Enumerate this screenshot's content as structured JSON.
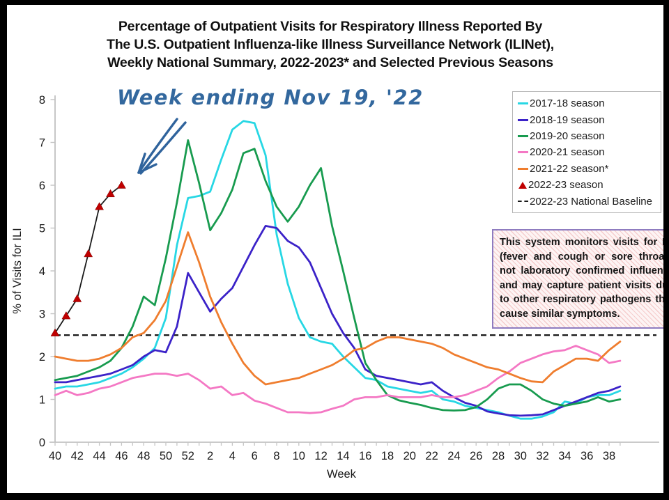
{
  "title": "Percentage of Outpatient Visits for Respiratory Illness Reported By\nThe U.S. Outpatient Influenza-like Illness Surveillance Network (ILINet),\nWeekly National Summary, 2022-2023* and Selected Previous Seasons",
  "annotation": {
    "text": "Week ending Nov 19, '22",
    "color": "#33689e"
  },
  "info_box": {
    "text": "This system monitors visits for ILI (fever and cough or sore throat), not laboratory confirmed influenza and may capture patient visits due to other respiratory pathogens that cause similar symptoms."
  },
  "legend": {
    "items": [
      {
        "label": "2017-18 season",
        "swatch": "line",
        "color": "#27d7e4"
      },
      {
        "label": "2018-19 season",
        "swatch": "line",
        "color": "#3b22c8"
      },
      {
        "label": "2019-20 season",
        "swatch": "line",
        "color": "#189b4f"
      },
      {
        "label": "2020-21 season",
        "swatch": "line",
        "color": "#f478c4"
      },
      {
        "label": "2021-22 season*",
        "swatch": "line",
        "color": "#ef7d2e"
      },
      {
        "label": "2022-23 season",
        "swatch": "triangle",
        "color": "#c00000"
      },
      {
        "label": "2022-23 National Baseline",
        "swatch": "dashed",
        "color": "#1a1a1a"
      }
    ]
  },
  "chart_data": {
    "type": "line",
    "title": "Percentage of Outpatient Visits for Respiratory Illness Reported By The U.S. Outpatient Influenza-like Illness Surveillance Network (ILINet), Weekly National Summary, 2022-2023* and Selected Previous Seasons",
    "xlabel": "Week",
    "ylabel": "% of Visits for ILI",
    "ylim": [
      0,
      8
    ],
    "yticks": [
      0,
      1,
      2,
      3,
      4,
      5,
      6,
      7,
      8
    ],
    "grid": false,
    "legend_position": "upper right",
    "weeks": [
      40,
      41,
      42,
      43,
      44,
      45,
      46,
      47,
      48,
      49,
      50,
      51,
      52,
      1,
      2,
      3,
      4,
      5,
      6,
      7,
      8,
      9,
      10,
      11,
      12,
      13,
      14,
      15,
      16,
      17,
      18,
      19,
      20,
      21,
      22,
      23,
      24,
      25,
      26,
      27,
      28,
      29,
      30,
      31,
      32,
      33,
      34,
      35,
      36,
      37,
      38,
      39
    ],
    "series": [
      {
        "name": "2017-18 season",
        "color": "#27d7e4",
        "values": [
          1.25,
          1.3,
          1.3,
          1.35,
          1.4,
          1.5,
          1.6,
          1.75,
          1.95,
          2.2,
          2.9,
          4.6,
          5.7,
          5.75,
          5.85,
          6.6,
          7.3,
          7.5,
          7.45,
          6.7,
          4.85,
          3.7,
          2.9,
          2.45,
          2.35,
          2.3,
          2.0,
          1.75,
          1.5,
          1.45,
          1.3,
          1.25,
          1.2,
          1.15,
          1.2,
          1.0,
          0.95,
          0.85,
          0.8,
          0.75,
          0.7,
          0.62,
          0.55,
          0.55,
          0.6,
          0.7,
          0.95,
          0.9,
          1.05,
          1.1,
          1.1,
          1.2
        ]
      },
      {
        "name": "2018-19 season",
        "color": "#3b22c8",
        "values": [
          1.4,
          1.4,
          1.45,
          1.5,
          1.55,
          1.6,
          1.7,
          1.8,
          2.0,
          2.15,
          2.1,
          2.7,
          3.95,
          3.5,
          3.05,
          3.35,
          3.6,
          4.1,
          4.6,
          5.05,
          5.0,
          4.7,
          4.55,
          4.2,
          3.6,
          3.0,
          2.55,
          2.2,
          1.7,
          1.55,
          1.5,
          1.45,
          1.4,
          1.35,
          1.4,
          1.2,
          1.05,
          0.92,
          0.85,
          0.72,
          0.67,
          0.63,
          0.62,
          0.63,
          0.65,
          0.75,
          0.85,
          0.95,
          1.05,
          1.15,
          1.2,
          1.3
        ]
      },
      {
        "name": "2019-20 season",
        "color": "#189b4f",
        "values": [
          1.45,
          1.5,
          1.55,
          1.65,
          1.75,
          1.9,
          2.2,
          2.7,
          3.4,
          3.2,
          4.3,
          5.6,
          7.05,
          6.05,
          4.95,
          5.35,
          5.9,
          6.75,
          6.85,
          6.1,
          5.5,
          5.15,
          5.5,
          6.0,
          6.4,
          5.05,
          4.0,
          2.9,
          1.85,
          1.45,
          1.1,
          0.98,
          0.92,
          0.87,
          0.8,
          0.75,
          0.74,
          0.75,
          0.82,
          1.0,
          1.25,
          1.35,
          1.35,
          1.2,
          1.0,
          0.9,
          0.85,
          0.9,
          0.95,
          1.05,
          0.95,
          1.0
        ]
      },
      {
        "name": "2020-21 season",
        "color": "#f478c4",
        "values": [
          1.1,
          1.2,
          1.1,
          1.15,
          1.25,
          1.3,
          1.4,
          1.5,
          1.55,
          1.6,
          1.6,
          1.55,
          1.6,
          1.45,
          1.25,
          1.3,
          1.1,
          1.15,
          0.97,
          0.9,
          0.8,
          0.7,
          0.7,
          0.68,
          0.7,
          0.78,
          0.85,
          1.0,
          1.05,
          1.05,
          1.1,
          1.05,
          1.05,
          1.05,
          1.1,
          1.05,
          1.05,
          1.1,
          1.2,
          1.3,
          1.5,
          1.65,
          1.85,
          1.95,
          2.05,
          2.12,
          2.15,
          2.25,
          2.15,
          2.05,
          1.85,
          1.9
        ]
      },
      {
        "name": "2021-22 season*",
        "color": "#ef7d2e",
        "values": [
          2.0,
          1.95,
          1.9,
          1.9,
          1.95,
          2.05,
          2.2,
          2.45,
          2.55,
          2.85,
          3.3,
          4.1,
          4.9,
          4.2,
          3.4,
          2.8,
          2.3,
          1.85,
          1.55,
          1.35,
          1.4,
          1.45,
          1.5,
          1.6,
          1.7,
          1.8,
          1.95,
          2.15,
          2.2,
          2.35,
          2.45,
          2.45,
          2.4,
          2.35,
          2.3,
          2.2,
          2.05,
          1.95,
          1.85,
          1.75,
          1.7,
          1.6,
          1.5,
          1.42,
          1.4,
          1.65,
          1.8,
          1.95,
          1.95,
          1.9,
          2.15,
          2.35
        ]
      },
      {
        "name": "2022-23 season",
        "color": "#1a1a1a",
        "line_width": 1.8,
        "marker": "triangle",
        "marker_color": "#c00000",
        "values": [
          2.55,
          2.95,
          3.35,
          4.4,
          5.5,
          5.8,
          6.0
        ]
      }
    ],
    "baseline": {
      "label": "2022-23 National Baseline",
      "value": 2.5,
      "color": "#111111",
      "style": "dashed"
    }
  }
}
